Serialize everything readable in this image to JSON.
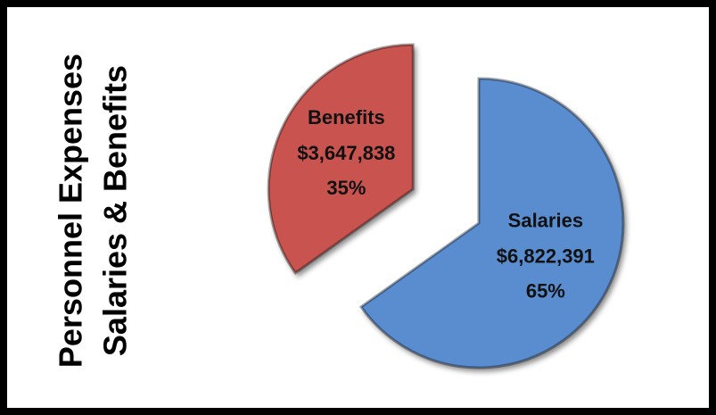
{
  "chart_data": {
    "type": "pie",
    "title": "Personnel Expenses",
    "subtitle": "Salaries & Benefits",
    "categories": [
      "Salaries",
      "Benefits"
    ],
    "values": [
      6822391,
      3647838
    ],
    "value_labels": [
      "$6,822,391",
      "$3,647,838"
    ],
    "percents": [
      65,
      35
    ],
    "percent_labels": [
      "65%",
      "35%"
    ],
    "colors": [
      "#5a8cd0",
      "#c9534f"
    ],
    "exploded": [
      false,
      true
    ]
  }
}
